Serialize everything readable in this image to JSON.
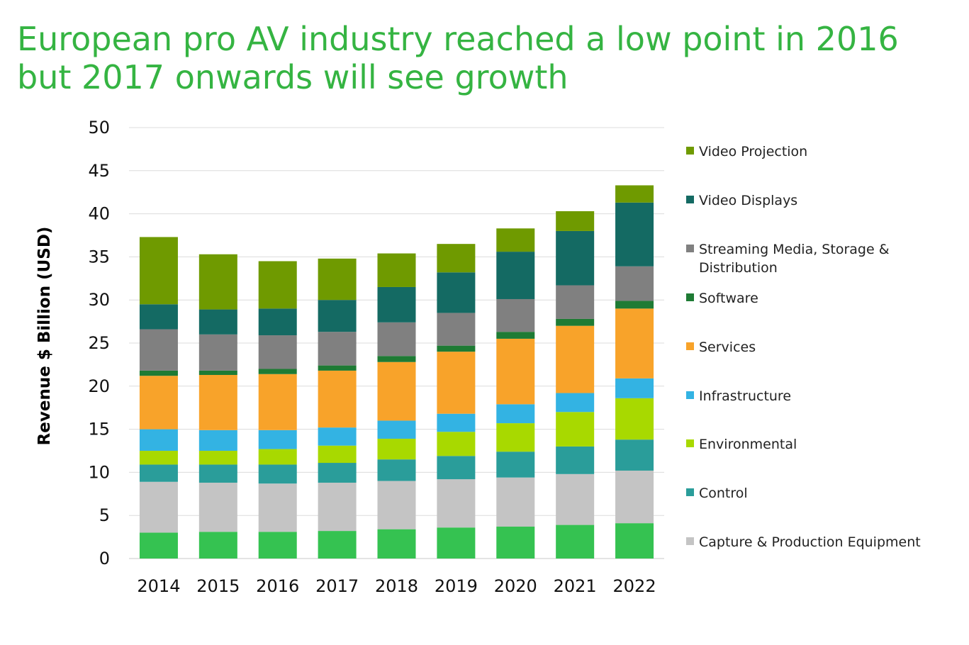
{
  "title": "European pro AV industry reached a low point in 2016 but 2017 onwards will see growth",
  "chart_data": {
    "type": "bar",
    "stacked": true,
    "categories": [
      "2014",
      "2015",
      "2016",
      "2017",
      "2018",
      "2019",
      "2020",
      "2021",
      "2022"
    ],
    "ylabel": "Revenue $ Billion (USD)",
    "ylim": [
      0,
      50
    ],
    "yticks": [
      "0",
      "5",
      "10",
      "15",
      "20",
      "25",
      "30",
      "35",
      "40",
      "45",
      "50"
    ],
    "grid": true,
    "legend_position": "right",
    "series": [
      {
        "key": "green_base",
        "color": "#35c251",
        "values": [
          3.0,
          3.1,
          3.1,
          3.2,
          3.4,
          3.6,
          3.7,
          3.9,
          4.1
        ]
      },
      {
        "name": "Capture & Production Equipment",
        "color": "#c4c4c4",
        "values": [
          5.9,
          5.7,
          5.6,
          5.6,
          5.6,
          5.6,
          5.7,
          5.9,
          6.1
        ]
      },
      {
        "name": "Control",
        "color": "#2a9d9a",
        "values": [
          2.0,
          2.1,
          2.2,
          2.3,
          2.5,
          2.7,
          3.0,
          3.2,
          3.6
        ]
      },
      {
        "name": "Environmental",
        "color": "#a8d900",
        "values": [
          1.6,
          1.6,
          1.8,
          2.0,
          2.4,
          2.8,
          3.3,
          4.0,
          4.8
        ]
      },
      {
        "name": "Infrastructure",
        "color": "#33b3e3",
        "values": [
          2.5,
          2.4,
          2.2,
          2.1,
          2.1,
          2.1,
          2.2,
          2.2,
          2.3
        ]
      },
      {
        "name": "Services",
        "color": "#f8a32a",
        "values": [
          6.2,
          6.4,
          6.5,
          6.6,
          6.8,
          7.2,
          7.6,
          7.8,
          8.1
        ]
      },
      {
        "name": "Software",
        "color": "#1e7b34",
        "values": [
          0.6,
          0.5,
          0.6,
          0.6,
          0.7,
          0.7,
          0.8,
          0.8,
          0.9
        ]
      },
      {
        "name": "Streaming Media, Storage &\nDistribution",
        "color": "#808080",
        "values": [
          4.8,
          4.2,
          3.9,
          3.9,
          3.9,
          3.8,
          3.8,
          3.9,
          4.0
        ]
      },
      {
        "name": "Video Displays",
        "color": "#146a63",
        "values": [
          2.9,
          2.9,
          3.1,
          3.7,
          4.1,
          4.7,
          5.5,
          6.3,
          7.4
        ]
      },
      {
        "name": "Video Projection",
        "color": "#6f9a00",
        "values": [
          7.8,
          6.4,
          5.5,
          4.8,
          3.9,
          3.3,
          2.7,
          2.3,
          2.0
        ]
      }
    ]
  }
}
